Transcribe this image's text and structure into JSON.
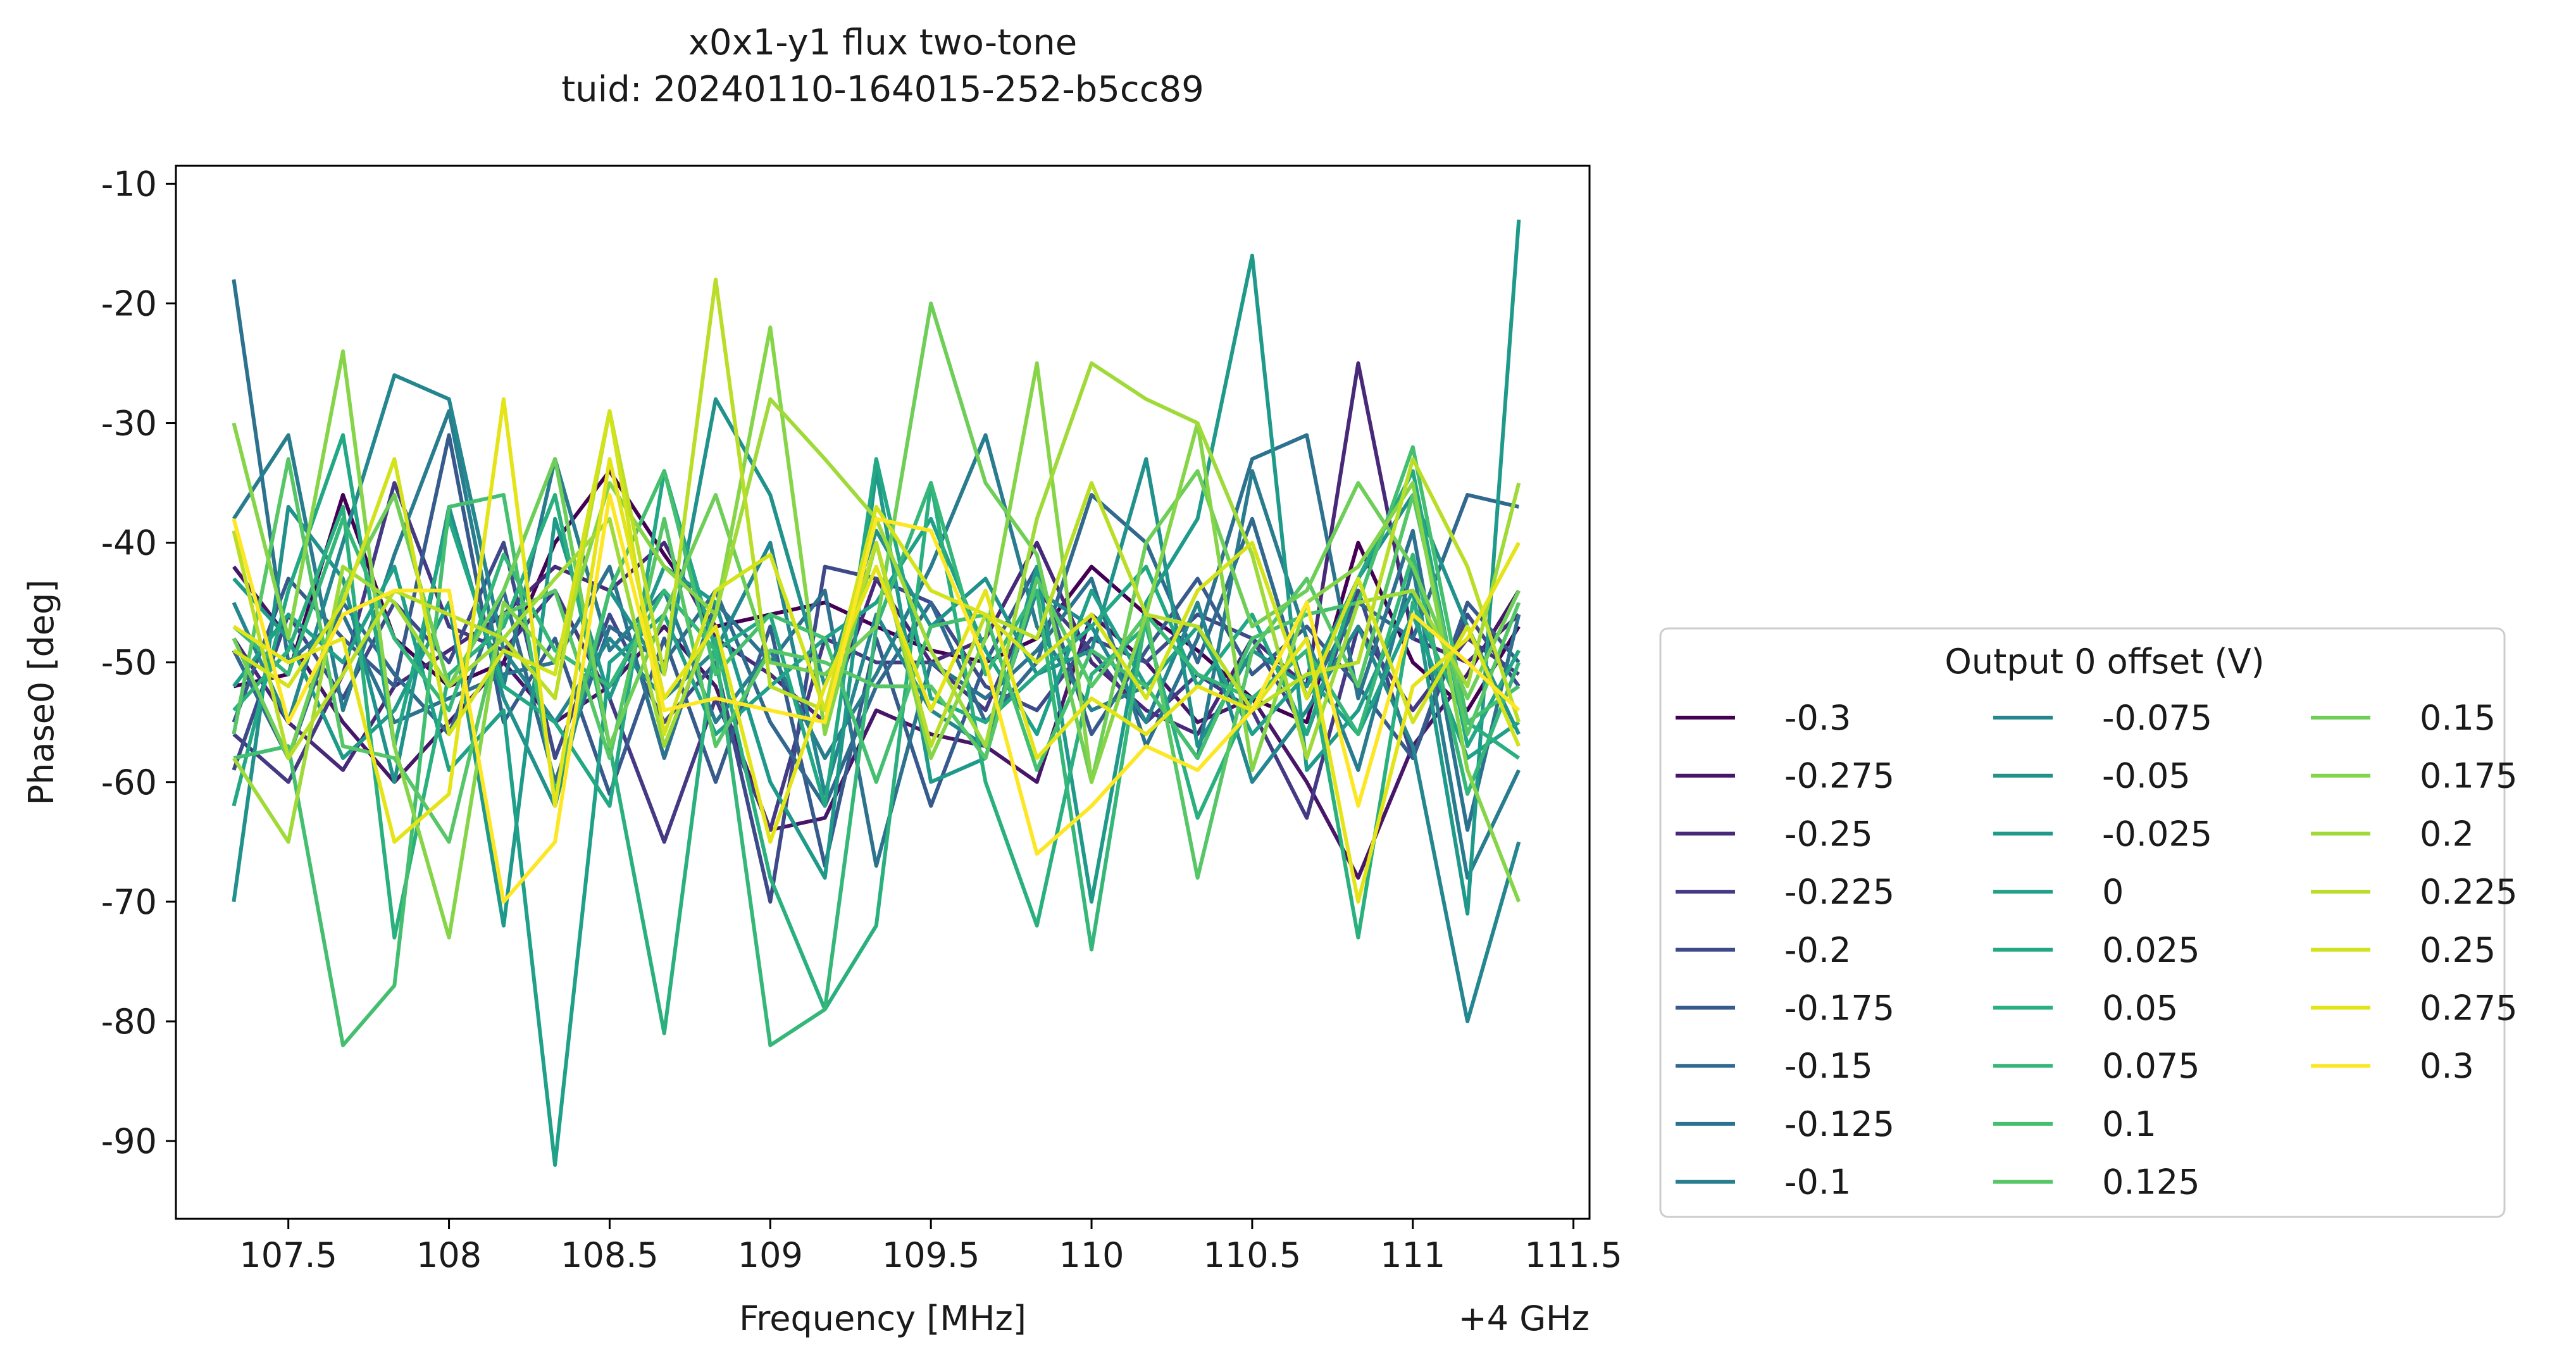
{
  "chart_data": {
    "type": "line",
    "title": "x0x1-y1 flux two-tone",
    "subtitle": "tuid: 20240110-164015-252-b5cc89",
    "xlabel": "Frequency [MHz]",
    "ylabel": "Phase0 [deg]",
    "x_offset_label": "+4 GHz",
    "xlim": [
      107.15,
      111.55
    ],
    "ylim": [
      -96.5,
      -8.5
    ],
    "x_ticks": [
      107.5,
      108,
      108.5,
      109,
      109.5,
      110,
      110.5,
      111,
      111.5
    ],
    "x_tick_labels": [
      "107.5",
      "108",
      "108.5",
      "109",
      "109.5",
      "110",
      "110.5",
      "111",
      "111.5"
    ],
    "y_ticks": [
      -10,
      -20,
      -30,
      -40,
      -50,
      -60,
      -70,
      -80,
      -90
    ],
    "y_tick_labels": [
      "-10",
      "-20",
      "-30",
      "-40",
      "-50",
      "-60",
      "-70",
      "-80",
      "-90"
    ],
    "grid": false,
    "legend": {
      "title": "Output 0 offset (V)",
      "placement": "outside-right-bottom",
      "columns": 3
    },
    "x": [
      107.33,
      107.5,
      107.67,
      107.83,
      108.0,
      108.17,
      108.33,
      108.5,
      108.67,
      108.83,
      109.0,
      109.17,
      109.33,
      109.5,
      109.67,
      109.83,
      110.0,
      110.17,
      110.33,
      110.5,
      110.67,
      110.83,
      111.0,
      111.17,
      111.33
    ],
    "series": [
      {
        "name": "-0.3",
        "color": "#440154",
        "values": [
          -52,
          -51,
          -36,
          -48,
          -52,
          -50,
          -40,
          -34,
          -41,
          -47,
          -46,
          -45,
          -47,
          -49,
          -50,
          -48,
          -42,
          -46,
          -49,
          -53,
          -55,
          -40,
          -50,
          -54,
          -47
        ]
      },
      {
        "name": "-0.275",
        "color": "#481668",
        "values": [
          -42,
          -48,
          -55,
          -60,
          -55,
          -50,
          -55,
          -52,
          -47,
          -52,
          -64,
          -63,
          -54,
          -56,
          -57,
          -60,
          -46,
          -50,
          -55,
          -53,
          -60,
          -68,
          -57,
          -51,
          -44
        ]
      },
      {
        "name": "-0.25",
        "color": "#482878",
        "values": [
          -48,
          -55,
          -59,
          -52,
          -49,
          -46,
          -42,
          -44,
          -40,
          -48,
          -51,
          -55,
          -43,
          -50,
          -48,
          -40,
          -50,
          -54,
          -56,
          -48,
          -52,
          -25,
          -48,
          -50,
          -46
        ]
      },
      {
        "name": "-0.225",
        "color": "#443983",
        "values": [
          -56,
          -60,
          -51,
          -35,
          -47,
          -49,
          -44,
          -53,
          -65,
          -53,
          -64,
          -48,
          -50,
          -50,
          -54,
          -44,
          -49,
          -55,
          -51,
          -54,
          -63,
          -47,
          -54,
          -48,
          -51
        ]
      },
      {
        "name": "-0.2",
        "color": "#3e4989",
        "values": [
          -59,
          -46,
          -53,
          -45,
          -50,
          -40,
          -58,
          -46,
          -55,
          -50,
          -70,
          -42,
          -43,
          -45,
          -52,
          -54,
          -48,
          -50,
          -46,
          -48,
          -56,
          -44,
          -58,
          -46,
          -52
        ]
      },
      {
        "name": "-0.175",
        "color": "#375a8c",
        "values": [
          -55,
          -43,
          -48,
          -52,
          -31,
          -55,
          -48,
          -61,
          -48,
          -60,
          -47,
          -67,
          -48,
          -62,
          -50,
          -42,
          -56,
          -49,
          -43,
          -51,
          -47,
          -52,
          -58,
          -45,
          -50
        ]
      },
      {
        "name": "-0.15",
        "color": "#31688e",
        "values": [
          -49,
          -58,
          -45,
          -51,
          -56,
          -44,
          -60,
          -47,
          -50,
          -44,
          -55,
          -62,
          -52,
          -45,
          -55,
          -50,
          -36,
          -40,
          -50,
          -38,
          -53,
          -45,
          -48,
          -36,
          -37
        ]
      },
      {
        "name": "-0.125",
        "color": "#2c728e",
        "values": [
          -18,
          -50,
          -46,
          -55,
          -53,
          -51,
          -50,
          -42,
          -58,
          -45,
          -50,
          -44,
          -67,
          -50,
          -53,
          -49,
          -43,
          -57,
          -48,
          -33,
          -31,
          -53,
          -39,
          -64,
          -46
        ]
      },
      {
        "name": "-0.1",
        "color": "#287c8e",
        "values": [
          -38,
          -31,
          -54,
          -41,
          -29,
          -52,
          -33,
          -49,
          -44,
          -55,
          -49,
          -58,
          -51,
          -42,
          -31,
          -47,
          -54,
          -52,
          -58,
          -34,
          -48,
          -59,
          -42,
          -68,
          -59
        ]
      },
      {
        "name": "-0.075",
        "color": "#24868e",
        "values": [
          -45,
          -55,
          -40,
          -26,
          -28,
          -49,
          -55,
          -48,
          -53,
          -49,
          -40,
          -61,
          -46,
          -54,
          -57,
          -44,
          -47,
          -55,
          -45,
          -60,
          -54,
          -47,
          -57,
          -80,
          -65
        ]
      },
      {
        "name": "-0.05",
        "color": "#21918c",
        "values": [
          -70,
          -37,
          -43,
          -60,
          -37,
          -53,
          -62,
          -44,
          -51,
          -28,
          -36,
          -52,
          -39,
          -47,
          -43,
          -51,
          -49,
          -33,
          -57,
          -49,
          -52,
          -43,
          -36,
          -47,
          -56
        ]
      },
      {
        "name": "-0.025",
        "color": "#1f9a8a",
        "values": [
          -43,
          -48,
          -58,
          -54,
          -45,
          -72,
          -38,
          -53,
          -42,
          -45,
          -60,
          -68,
          -34,
          -60,
          -58,
          -42,
          -70,
          -45,
          -38,
          -16,
          -59,
          -54,
          -44,
          -71,
          -13
        ]
      },
      {
        "name": "0",
        "color": "#1fa088",
        "values": [
          -52,
          -46,
          -50,
          -42,
          -59,
          -54,
          -92,
          -50,
          -46,
          -56,
          -52,
          -48,
          -45,
          -38,
          -49,
          -56,
          -44,
          -52,
          -47,
          -56,
          -51,
          -56,
          -46,
          -58,
          -55
        ]
      },
      {
        "name": "0.025",
        "color": "#22a884",
        "values": [
          -62,
          -44,
          -31,
          -57,
          -38,
          -52,
          -55,
          -62,
          -34,
          -49,
          -46,
          -62,
          -33,
          -53,
          -55,
          -51,
          -47,
          -42,
          -52,
          -46,
          -56,
          -43,
          -34,
          -57,
          -49
        ]
      },
      {
        "name": "0.05",
        "color": "#2ab07f",
        "values": [
          -54,
          -49,
          -37,
          -73,
          -51,
          -47,
          -36,
          -57,
          -81,
          -48,
          -68,
          -79,
          -72,
          -35,
          -60,
          -72,
          -51,
          -47,
          -63,
          -53,
          -49,
          -73,
          -45,
          -55,
          -58
        ]
      },
      {
        "name": "0.075",
        "color": "#35b779",
        "values": [
          -47,
          -51,
          -38,
          -48,
          -54,
          -41,
          -49,
          -52,
          -44,
          -49,
          -82,
          -79,
          -47,
          -35,
          -51,
          -44,
          -74,
          -46,
          -51,
          -53,
          -49,
          -56,
          -41,
          -61,
          -50
        ]
      },
      {
        "name": "0.1",
        "color": "#44bf70",
        "values": [
          -58,
          -57,
          -82,
          -77,
          -37,
          -36,
          -61,
          -44,
          -34,
          -51,
          -46,
          -48,
          -60,
          -47,
          -46,
          -59,
          -49,
          -52,
          -58,
          -48,
          -46,
          -45,
          -32,
          -55,
          -52
        ]
      },
      {
        "name": "0.125",
        "color": "#56c667",
        "values": [
          -56,
          -33,
          -57,
          -58,
          -65,
          -46,
          -44,
          -58,
          -38,
          -57,
          -49,
          -50,
          -52,
          -52,
          -58,
          -43,
          -52,
          -46,
          -68,
          -49,
          -43,
          -52,
          -36,
          -56,
          -45
        ]
      },
      {
        "name": "0.15",
        "color": "#6ece58",
        "values": [
          -48,
          -58,
          -44,
          -36,
          -52,
          -44,
          -33,
          -57,
          -46,
          -36,
          -50,
          -51,
          -47,
          -20,
          -35,
          -41,
          -60,
          -40,
          -34,
          -47,
          -44,
          -35,
          -42,
          -53,
          -44
        ]
      },
      {
        "name": "0.175",
        "color": "#86d549",
        "values": [
          -30,
          -48,
          -24,
          -57,
          -73,
          -45,
          -50,
          -35,
          -42,
          -46,
          -22,
          -56,
          -40,
          -58,
          -48,
          -25,
          -60,
          -46,
          -30,
          -59,
          -45,
          -42,
          -35,
          -59,
          -70
        ]
      },
      {
        "name": "0.2",
        "color": "#a0da39",
        "values": [
          -58,
          -65,
          -42,
          -45,
          -52,
          -48,
          -43,
          -38,
          -57,
          -46,
          -28,
          -33,
          -38,
          -49,
          -57,
          -38,
          -25,
          -28,
          -30,
          -41,
          -58,
          -45,
          -44,
          -52,
          -35
        ]
      },
      {
        "name": "0.225",
        "color": "#bade28",
        "values": [
          -39,
          -58,
          -51,
          -44,
          -46,
          -48,
          -53,
          -29,
          -51,
          -18,
          -52,
          -54,
          -40,
          -57,
          -46,
          -48,
          -35,
          -46,
          -47,
          -54,
          -51,
          -50,
          -33,
          -42,
          -55
        ]
      },
      {
        "name": "0.25",
        "color": "#d2e21b",
        "values": [
          -49,
          -52,
          -45,
          -33,
          -56,
          -49,
          -51,
          -29,
          -56,
          -44,
          -41,
          -54,
          -37,
          -44,
          -46,
          -50,
          -46,
          -53,
          -44,
          -40,
          -53,
          -43,
          -55,
          -47,
          -57
        ]
      },
      {
        "name": "0.275",
        "color": "#e5e419",
        "values": [
          -47,
          -50,
          -48,
          -65,
          -61,
          -28,
          -62,
          -33,
          -53,
          -47,
          -65,
          -52,
          -42,
          -54,
          -44,
          -58,
          -53,
          -56,
          -52,
          -54,
          -48,
          -70,
          -52,
          -48,
          -40
        ]
      },
      {
        "name": "0.3",
        "color": "#fde725",
        "values": [
          -38,
          -55,
          -46,
          -44,
          -44,
          -70,
          -65,
          -36,
          -54,
          -53,
          -54,
          -55,
          -38,
          -39,
          -50,
          -66,
          -62,
          -57,
          -59,
          -54,
          -45,
          -62,
          -46,
          -50,
          -54
        ]
      }
    ]
  }
}
